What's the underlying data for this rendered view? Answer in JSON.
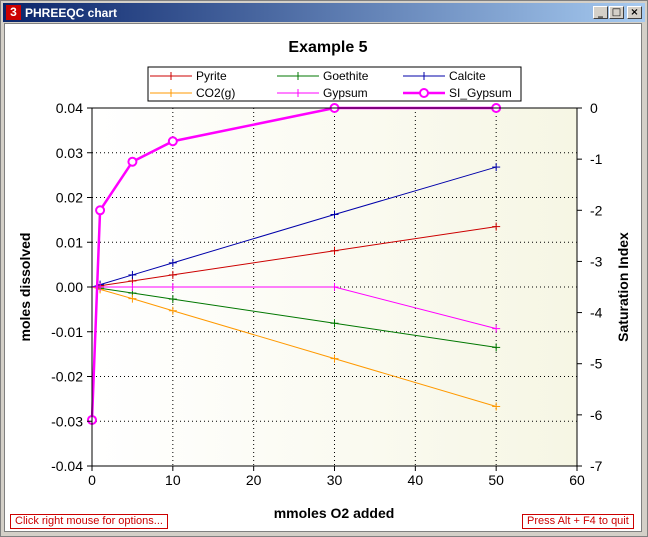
{
  "window": {
    "title": "PHREEQC chart",
    "minimize_glyph": "_",
    "maximize_glyph": "□",
    "close_glyph": "×"
  },
  "status": {
    "left": "Click right mouse for options...",
    "right": "Press Alt + F4 to quit"
  },
  "chart_data": {
    "type": "line",
    "title": "Example 5",
    "xlabel": "mmoles O2 added",
    "ylabel": "moles dissolved",
    "y2label": "Saturation Index",
    "xlim": [
      0,
      60
    ],
    "ylim": [
      -0.04,
      0.04
    ],
    "y2lim": [
      -7,
      0
    ],
    "xticks": [
      "0",
      "10",
      "20",
      "30",
      "40",
      "50",
      "60"
    ],
    "yticks": [
      "0.04",
      "0.03",
      "0.02",
      "0.01",
      "0.00",
      "-0.01",
      "-0.02",
      "-0.03",
      "-0.04"
    ],
    "y2ticks": [
      "0",
      "-1",
      "-2",
      "-3",
      "-4",
      "-5",
      "-6",
      "-7"
    ],
    "grid": true,
    "legend_position": "top",
    "series": [
      {
        "name": "Pyrite",
        "color": "#cc0000",
        "axis": "left",
        "marker": "plus",
        "x": [
          0,
          1,
          5,
          10,
          30,
          50
        ],
        "y": [
          0,
          0.00027,
          0.00135,
          0.0027,
          0.0081,
          0.0135
        ]
      },
      {
        "name": "Goethite",
        "color": "#007700",
        "axis": "left",
        "marker": "plus",
        "x": [
          0,
          1,
          5,
          10,
          30,
          50
        ],
        "y": [
          0,
          -0.00027,
          -0.00135,
          -0.0027,
          -0.0081,
          -0.0135
        ]
      },
      {
        "name": "Calcite",
        "color": "#0000aa",
        "axis": "left",
        "marker": "plus",
        "x": [
          0,
          1,
          5,
          10,
          30,
          50
        ],
        "y": [
          0,
          0.00054,
          0.0027,
          0.0054,
          0.0162,
          0.0268
        ]
      },
      {
        "name": "CO2(g)",
        "color": "#ff9900",
        "axis": "left",
        "marker": "plus",
        "x": [
          0,
          1,
          5,
          10,
          30,
          50
        ],
        "y": [
          0,
          -0.00053,
          -0.0026,
          -0.0053,
          -0.016,
          -0.0267
        ]
      },
      {
        "name": "Gypsum",
        "color": "#ff00ff",
        "axis": "left",
        "marker": "plus",
        "x": [
          0,
          1,
          5,
          10,
          30,
          50
        ],
        "y": [
          0,
          0,
          0,
          0,
          0,
          -0.0093
        ]
      },
      {
        "name": "SI_Gypsum",
        "color": "#ff00ff",
        "axis": "right",
        "marker": "circle",
        "x": [
          0,
          1,
          5,
          10,
          30,
          50
        ],
        "y": [
          -6.1,
          -2.0,
          -1.05,
          -0.65,
          0,
          0
        ]
      }
    ]
  }
}
